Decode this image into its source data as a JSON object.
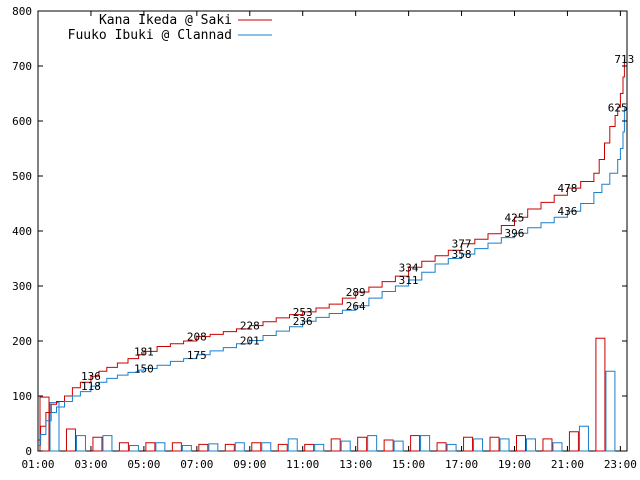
{
  "chart_data": {
    "type": "line",
    "title": "",
    "xlabel": "",
    "ylabel": "",
    "ylim": [
      0,
      800
    ],
    "yticks": [
      0,
      100,
      200,
      300,
      400,
      500,
      600,
      700,
      800
    ],
    "xticks": [
      "01:00",
      "03:00",
      "05:00",
      "07:00",
      "09:00",
      "11:00",
      "13:00",
      "15:00",
      "17:00",
      "19:00",
      "21:00",
      "23:00"
    ],
    "xlim_hours": [
      1,
      23.25
    ],
    "grid": false,
    "legend_position": "top-left",
    "series": [
      {
        "name": "Kana Ikeda @ Saki",
        "color": "#cc0000",
        "points": [
          [
            1.0,
            20
          ],
          [
            1.1,
            45
          ],
          [
            1.3,
            70
          ],
          [
            1.5,
            85
          ],
          [
            1.7,
            90
          ],
          [
            2.0,
            100
          ],
          [
            2.3,
            115
          ],
          [
            2.6,
            125
          ],
          [
            3.0,
            136
          ],
          [
            3.3,
            145
          ],
          [
            3.6,
            152
          ],
          [
            4.0,
            160
          ],
          [
            4.4,
            168
          ],
          [
            4.8,
            175
          ],
          [
            5.0,
            181
          ],
          [
            5.5,
            190
          ],
          [
            6.0,
            195
          ],
          [
            6.5,
            200
          ],
          [
            7.0,
            208
          ],
          [
            7.5,
            212
          ],
          [
            8.0,
            217
          ],
          [
            8.5,
            222
          ],
          [
            9.0,
            228
          ],
          [
            9.5,
            235
          ],
          [
            10.0,
            242
          ],
          [
            10.5,
            248
          ],
          [
            11.0,
            253
          ],
          [
            11.5,
            260
          ],
          [
            12.0,
            267
          ],
          [
            12.5,
            278
          ],
          [
            13.0,
            289
          ],
          [
            13.5,
            298
          ],
          [
            14.0,
            308
          ],
          [
            14.5,
            318
          ],
          [
            15.0,
            334
          ],
          [
            15.5,
            345
          ],
          [
            16.0,
            355
          ],
          [
            16.5,
            365
          ],
          [
            17.0,
            377
          ],
          [
            17.5,
            385
          ],
          [
            18.0,
            395
          ],
          [
            18.5,
            410
          ],
          [
            19.0,
            425
          ],
          [
            19.5,
            440
          ],
          [
            20.0,
            452
          ],
          [
            20.5,
            465
          ],
          [
            21.0,
            478
          ],
          [
            21.5,
            490
          ],
          [
            22.0,
            505
          ],
          [
            22.2,
            530
          ],
          [
            22.4,
            560
          ],
          [
            22.6,
            590
          ],
          [
            22.8,
            610
          ],
          [
            22.9,
            625
          ],
          [
            23.0,
            650
          ],
          [
            23.1,
            680
          ],
          [
            23.15,
            713
          ]
        ],
        "annotations": [
          [
            3.0,
            136
          ],
          [
            5.0,
            181
          ],
          [
            7.0,
            208
          ],
          [
            9.0,
            228
          ],
          [
            11.0,
            253
          ],
          [
            13.0,
            289
          ],
          [
            15.0,
            334
          ],
          [
            17.0,
            377
          ],
          [
            19.0,
            425
          ],
          [
            21.0,
            478
          ],
          [
            22.9,
            625
          ],
          [
            23.15,
            713
          ]
        ],
        "bars": [
          98,
          40,
          25,
          15,
          15,
          15,
          12,
          12,
          15,
          12,
          12,
          22,
          25,
          20,
          28,
          15,
          25,
          25,
          28,
          22,
          35,
          205
        ]
      },
      {
        "name": "Fuuko Ibuki @ Clannad",
        "color": "#1a7fcc",
        "points": [
          [
            1.0,
            10
          ],
          [
            1.1,
            30
          ],
          [
            1.3,
            55
          ],
          [
            1.5,
            70
          ],
          [
            1.7,
            80
          ],
          [
            2.0,
            90
          ],
          [
            2.3,
            100
          ],
          [
            2.6,
            108
          ],
          [
            3.0,
            118
          ],
          [
            3.3,
            125
          ],
          [
            3.6,
            132
          ],
          [
            4.0,
            138
          ],
          [
            4.4,
            143
          ],
          [
            4.8,
            147
          ],
          [
            5.0,
            150
          ],
          [
            5.5,
            156
          ],
          [
            6.0,
            163
          ],
          [
            6.5,
            168
          ],
          [
            7.0,
            175
          ],
          [
            7.5,
            182
          ],
          [
            8.0,
            188
          ],
          [
            8.5,
            195
          ],
          [
            9.0,
            201
          ],
          [
            9.5,
            210
          ],
          [
            10.0,
            218
          ],
          [
            10.5,
            226
          ],
          [
            11.0,
            236
          ],
          [
            11.5,
            243
          ],
          [
            12.0,
            250
          ],
          [
            12.5,
            256
          ],
          [
            13.0,
            264
          ],
          [
            13.5,
            278
          ],
          [
            14.0,
            290
          ],
          [
            14.5,
            300
          ],
          [
            15.0,
            311
          ],
          [
            15.5,
            325
          ],
          [
            16.0,
            340
          ],
          [
            16.5,
            350
          ],
          [
            17.0,
            358
          ],
          [
            17.5,
            368
          ],
          [
            18.0,
            378
          ],
          [
            18.5,
            388
          ],
          [
            19.0,
            396
          ],
          [
            19.5,
            406
          ],
          [
            20.0,
            415
          ],
          [
            20.5,
            425
          ],
          [
            21.0,
            436
          ],
          [
            21.5,
            450
          ],
          [
            22.0,
            470
          ],
          [
            22.3,
            485
          ],
          [
            22.6,
            505
          ],
          [
            22.9,
            530
          ],
          [
            23.0,
            550
          ],
          [
            23.1,
            580
          ],
          [
            23.15,
            625
          ]
        ],
        "annotations": [
          [
            3.0,
            118
          ],
          [
            5.0,
            150
          ],
          [
            7.0,
            175
          ],
          [
            9.0,
            201
          ],
          [
            11.0,
            236
          ],
          [
            13.0,
            264
          ],
          [
            15.0,
            311
          ],
          [
            17.0,
            358
          ],
          [
            19.0,
            396
          ],
          [
            21.0,
            436
          ]
        ],
        "bars": [
          88,
          28,
          28,
          10,
          15,
          10,
          13,
          15,
          15,
          22,
          12,
          18,
          28,
          18,
          28,
          12,
          22,
          22,
          22,
          15,
          45,
          145
        ]
      }
    ]
  }
}
